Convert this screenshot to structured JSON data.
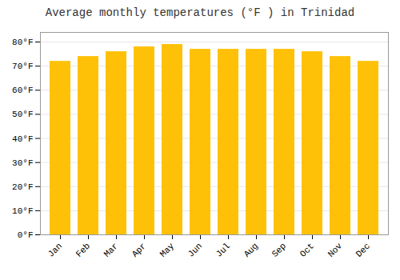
{
  "chart_data": {
    "type": "bar",
    "title": "Average monthly temperatures (°F ) in Trinidad",
    "categories": [
      "Jan",
      "Feb",
      "Mar",
      "Apr",
      "May",
      "Jun",
      "Jul",
      "Aug",
      "Sep",
      "Oct",
      "Nov",
      "Dec"
    ],
    "values": [
      72,
      74,
      76,
      78,
      79,
      77,
      77,
      77,
      77,
      76,
      74,
      72
    ],
    "color": "#FFC107",
    "ylim": [
      0,
      84
    ],
    "yticks": [
      {
        "value": 0,
        "label": "0°F"
      },
      {
        "value": 10,
        "label": "10°F"
      },
      {
        "value": 20,
        "label": "20°F"
      },
      {
        "value": 30,
        "label": "30°F"
      },
      {
        "value": 40,
        "label": "40°F"
      },
      {
        "value": 50,
        "label": "50°F"
      },
      {
        "value": 60,
        "label": "60°F"
      },
      {
        "value": 70,
        "label": "70°F"
      },
      {
        "value": 80,
        "label": "80°F"
      }
    ],
    "grid": true
  }
}
